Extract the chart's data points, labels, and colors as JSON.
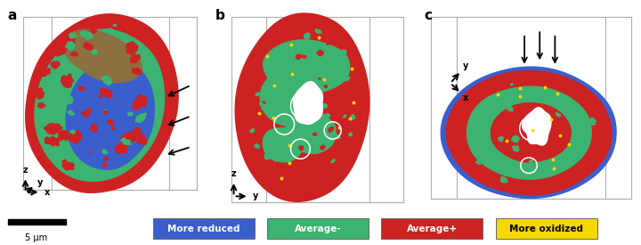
{
  "background_color": "#ffffff",
  "box_color": "#aaaaaa",
  "legend_items": [
    {
      "label": "More reduced",
      "color": "#3a5fcd"
    },
    {
      "label": "Average-",
      "color": "#3cb371"
    },
    {
      "label": "Average+",
      "color": "#cc2222"
    },
    {
      "label": "More oxidized",
      "color": "#f5d800"
    }
  ],
  "scalebar_label": "5 μm"
}
